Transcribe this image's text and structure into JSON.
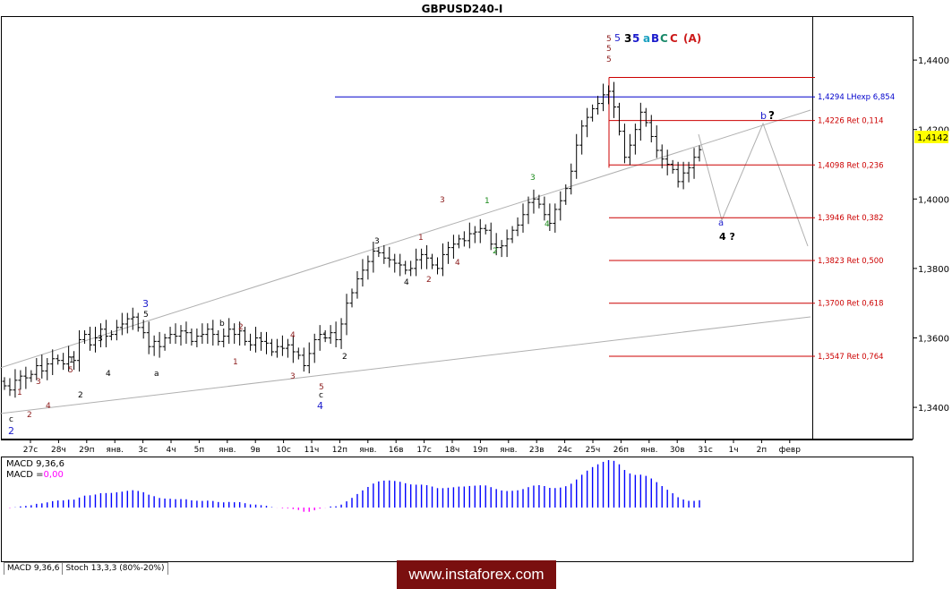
{
  "symbol": "GBPUSD240-I",
  "watermark": "www.instaforex.com",
  "tabs": [
    "MACD 9,36,6",
    "Stoch 13,3,3 (80%-20%)"
  ],
  "macd_label": "MACD 9,36,6",
  "macd_value_label": "MACD =",
  "macd_value": "0,00",
  "current_price": "1,4142",
  "colors": {
    "macd_pos": "#0000ff",
    "macd_neg": "#ff00ff",
    "fib": "#cc0000",
    "lhexp": "#0000cc",
    "candle": "#000000"
  },
  "chart_data": {
    "type": "candlestick",
    "title": "GBPUSD240-I",
    "timeframe": "H4",
    "ylim": [
      1.331,
      1.4524
    ],
    "y_ticks": [
      "1,4400",
      "1,4200",
      "1,4000",
      "1,3800",
      "1,3600",
      "1,3400"
    ],
    "y_tick_values": [
      1.44,
      1.42,
      1.4,
      1.38,
      1.36,
      1.34
    ],
    "x_ticks": [
      "27c",
      "28ч",
      "29п",
      "янв.",
      "3c",
      "4ч",
      "5п",
      "янв.",
      "9в",
      "10c",
      "11ч",
      "12п",
      "янв.",
      "16в",
      "17c",
      "18ч",
      "19п",
      "янв.",
      "23в",
      "24c",
      "25ч",
      "26п",
      "янв.",
      "30в",
      "31c",
      "1ч",
      "2п",
      "февр"
    ],
    "close": [
      1.3462,
      1.345,
      1.3478,
      1.349,
      1.3485,
      1.3495,
      1.352,
      1.3505,
      1.3525,
      1.354,
      1.3535,
      1.3525,
      1.3545,
      1.3535,
      1.3595,
      1.361,
      1.358,
      1.36,
      1.3625,
      1.3605,
      1.361,
      1.363,
      1.364,
      1.3655,
      1.366,
      1.363,
      1.3615,
      1.3575,
      1.359,
      1.3575,
      1.36,
      1.361,
      1.3605,
      1.362,
      1.3615,
      1.359,
      1.3605,
      1.361,
      1.3625,
      1.361,
      1.359,
      1.3605,
      1.3625,
      1.361,
      1.362,
      1.359,
      1.358,
      1.36,
      1.359,
      1.3585,
      1.356,
      1.3575,
      1.357,
      1.358,
      1.356,
      1.355,
      1.352,
      1.3555,
      1.3595,
      1.361,
      1.36,
      1.3615,
      1.3595,
      1.364,
      1.37,
      1.373,
      1.377,
      1.3795,
      1.382,
      1.385,
      1.3845,
      1.383,
      1.3825,
      1.3815,
      1.381,
      1.3795,
      1.38,
      1.3825,
      1.384,
      1.383,
      1.381,
      1.38,
      1.384,
      1.386,
      1.387,
      1.3885,
      1.388,
      1.39,
      1.3905,
      1.3915,
      1.391,
      1.387,
      1.386,
      1.3865,
      1.3885,
      1.391,
      1.3925,
      1.3955,
      1.399,
      1.4,
      1.3985,
      1.3955,
      1.393,
      1.397,
      1.3995,
      1.403,
      1.408,
      1.4155,
      1.421,
      1.4235,
      1.426,
      1.4275,
      1.43,
      1.431,
      1.4265,
      1.4195,
      1.412,
      1.4155,
      1.42,
      1.425,
      1.422,
      1.418,
      1.414,
      1.4115,
      1.41,
      1.4085,
      1.405,
      1.4075,
      1.409,
      1.412,
      1.4142
    ],
    "fibonacci_levels": [
      {
        "label": "1,4294 LHexp 6,854",
        "value": 1.4294
      },
      {
        "label": "1,4226 Ret 0,114",
        "value": 1.4226
      },
      {
        "label": "1,4098 Ret 0,236",
        "value": 1.4098
      },
      {
        "label": "1,3946 Ret 0,382",
        "value": 1.3946
      },
      {
        "label": "1,3823 Ret 0,500",
        "value": 1.3823
      },
      {
        "label": "1,3700 Ret 0,618",
        "value": 1.37
      },
      {
        "label": "1,3547 Ret 0,764",
        "value": 1.3547
      }
    ],
    "wave_labels": [
      "c",
      "2",
      "1",
      "2",
      "3",
      "4",
      "5",
      "1",
      "2",
      "3",
      "4",
      "3",
      "5",
      "a",
      "b",
      "2",
      "1",
      "4",
      "3",
      "1",
      "2",
      "5",
      "c",
      "4",
      "3",
      "4",
      "2",
      "1",
      "3",
      "4",
      "1",
      "2",
      "3",
      "4",
      "5",
      "5",
      "5",
      "5",
      "3",
      "5",
      "a",
      "B",
      "C",
      "C",
      "(A)",
      "b",
      "?",
      "a",
      "4 ?"
    ],
    "forecast": "a → 4 ? → b ?",
    "macd": {
      "name": "MACD 9,36,6",
      "value": "0,00"
    }
  }
}
